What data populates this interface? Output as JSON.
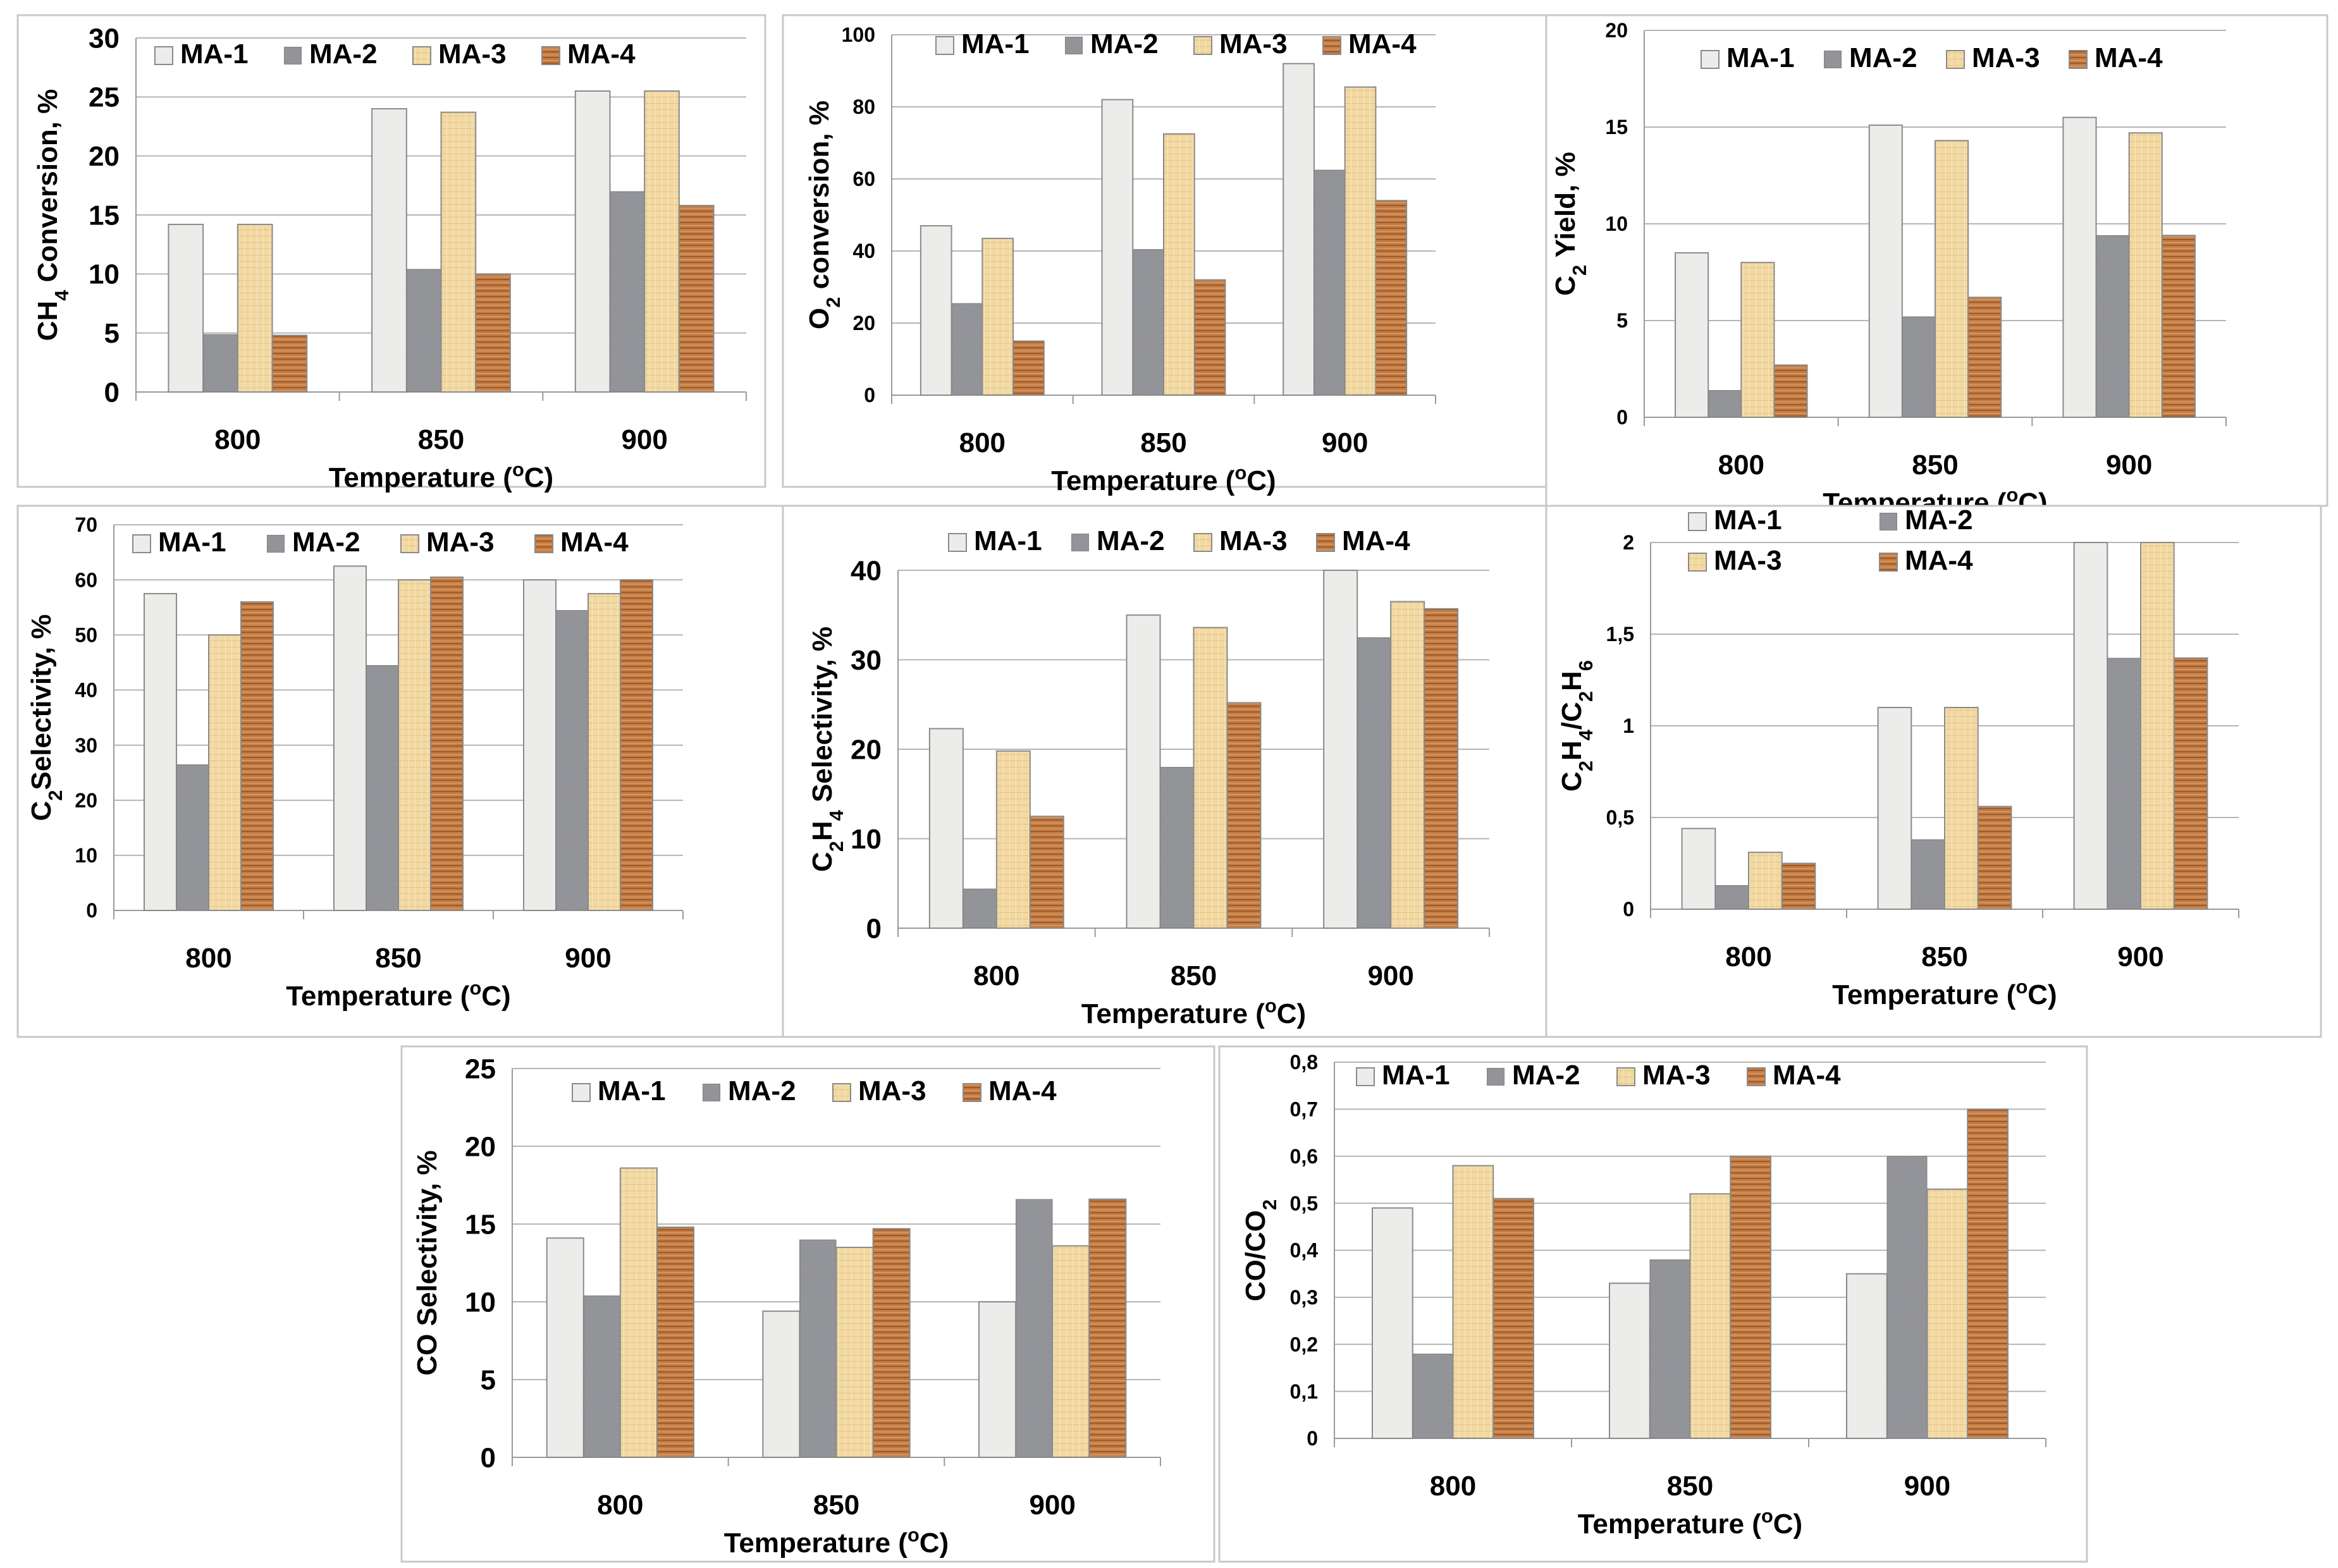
{
  "series_colors": {
    "MA-1": "#ececea",
    "MA-2": "#9d9ea3",
    "MA-3": "#efd39a",
    "MA-4": "#c47d45"
  },
  "chart_data": [
    {
      "id": "ch4-conversion",
      "type": "bar",
      "categories": [
        "800",
        "850",
        "900"
      ],
      "series": [
        {
          "name": "MA-1",
          "values": [
            14.2,
            24.0,
            25.5
          ]
        },
        {
          "name": "MA-2",
          "values": [
            4.9,
            10.4,
            17.0
          ]
        },
        {
          "name": "MA-3",
          "values": [
            14.2,
            23.7,
            25.5
          ]
        },
        {
          "name": "MA-4",
          "values": [
            4.8,
            10.0,
            15.8
          ]
        }
      ],
      "ylim": [
        0,
        30
      ],
      "yticks": [
        "0",
        "5",
        "10",
        "15",
        "20",
        "25",
        "30"
      ],
      "ylabel": {
        "pre": "CH",
        "sub": "4",
        "post": " Conversion, %"
      },
      "xlabel": {
        "pre": "Temperature  (",
        "sup": "o",
        "post": "C)"
      },
      "legend": {
        "layout": "one-row"
      }
    },
    {
      "id": "o2-conversion",
      "type": "bar",
      "categories": [
        "800",
        "850",
        "900"
      ],
      "series": [
        {
          "name": "MA-1",
          "values": [
            47,
            82,
            92
          ]
        },
        {
          "name": "MA-2",
          "values": [
            25.5,
            40.5,
            62.5
          ]
        },
        {
          "name": "MA-3",
          "values": [
            43.5,
            72.5,
            85.5
          ]
        },
        {
          "name": "MA-4",
          "values": [
            15,
            32,
            54
          ]
        }
      ],
      "ylim": [
        0,
        100
      ],
      "yticks": [
        "0",
        "20",
        "40",
        "60",
        "80",
        "100"
      ],
      "ylabel": {
        "pre": "O",
        "sub": "2",
        "post": " conversion, %"
      },
      "xlabel": {
        "pre": "Temperature  (",
        "sup": "o",
        "post": "C)"
      },
      "legend": {
        "layout": "one-row"
      }
    },
    {
      "id": "c2-yield",
      "type": "bar",
      "categories": [
        "800",
        "850",
        "900"
      ],
      "series": [
        {
          "name": "MA-1",
          "values": [
            8.5,
            15.1,
            15.5
          ]
        },
        {
          "name": "MA-2",
          "values": [
            1.4,
            5.2,
            9.4
          ]
        },
        {
          "name": "MA-3",
          "values": [
            8.0,
            14.3,
            14.7
          ]
        },
        {
          "name": "MA-4",
          "values": [
            2.7,
            6.2,
            9.4
          ]
        }
      ],
      "ylim": [
        0,
        20
      ],
      "yticks": [
        "0",
        "5",
        "10",
        "15",
        "20"
      ],
      "ylabel": {
        "pre": "C",
        "sub": "2",
        "post": " Yield, %"
      },
      "xlabel": {
        "pre": "Temperature  (",
        "sup": "o",
        "post": "C)"
      },
      "legend": {
        "layout": "one-row"
      }
    },
    {
      "id": "c2-selectivity",
      "type": "bar",
      "categories": [
        "800",
        "850",
        "900"
      ],
      "series": [
        {
          "name": "MA-1",
          "values": [
            57.5,
            62.5,
            60.0
          ]
        },
        {
          "name": "MA-2",
          "values": [
            26.5,
            44.5,
            54.5
          ]
        },
        {
          "name": "MA-3",
          "values": [
            50.0,
            60.0,
            57.5
          ]
        },
        {
          "name": "MA-4",
          "values": [
            56.0,
            60.5,
            60.0
          ]
        }
      ],
      "ylim": [
        0,
        70
      ],
      "yticks": [
        "0",
        "10",
        "20",
        "30",
        "40",
        "50",
        "60",
        "70"
      ],
      "ylabel": {
        "pre": "C",
        "sub": "2",
        "post": "Selectivity, %"
      },
      "xlabel": {
        "pre": "Temperature  (",
        "sup": "o",
        "post": "C)"
      },
      "legend": {
        "layout": "one-row"
      }
    },
    {
      "id": "c2h4-selectivity",
      "type": "bar",
      "categories": [
        "800",
        "850",
        "900"
      ],
      "series": [
        {
          "name": "MA-1",
          "values": [
            22.3,
            35.0,
            40.0
          ]
        },
        {
          "name": "MA-2",
          "values": [
            4.4,
            18.0,
            32.5
          ]
        },
        {
          "name": "MA-3",
          "values": [
            19.8,
            33.6,
            36.5
          ]
        },
        {
          "name": "MA-4",
          "values": [
            12.5,
            25.2,
            35.7
          ]
        }
      ],
      "ylim": [
        0,
        40
      ],
      "yticks": [
        "0",
        "10",
        "20",
        "30",
        "40"
      ],
      "ylabel": {
        "pre": "C",
        "sub": "2",
        "mid": "H",
        "sub2": "4",
        "post": " Selectivity, %"
      },
      "xlabel": {
        "pre": "Temperature  (",
        "sup": "o",
        "post": "C)"
      },
      "legend": {
        "layout": "one-row"
      }
    },
    {
      "id": "c2h4-c2h6-ratio",
      "type": "bar",
      "categories": [
        "800",
        "850",
        "900"
      ],
      "series": [
        {
          "name": "MA-1",
          "values": [
            0.44,
            1.1,
            2.0
          ]
        },
        {
          "name": "MA-2",
          "values": [
            0.13,
            0.38,
            1.37
          ]
        },
        {
          "name": "MA-3",
          "values": [
            0.31,
            1.1,
            2.0
          ]
        },
        {
          "name": "MA-4",
          "values": [
            0.25,
            0.56,
            1.37
          ]
        }
      ],
      "ylim": [
        0,
        2
      ],
      "yticks": [
        "0",
        "0,5",
        "1",
        "1,5",
        "2"
      ],
      "ylabel": {
        "pre": "C",
        "sub": "2",
        "mid": "H",
        "sub2": "4",
        "mid2": "/C",
        "sub3": "2",
        "mid3": "H",
        "sub4": "6",
        "post": ""
      },
      "xlabel": {
        "pre": "Temperature  (",
        "sup": "o",
        "post": "C)"
      },
      "legend": {
        "layout": "two-rows"
      }
    },
    {
      "id": "co-selectivity",
      "type": "bar",
      "categories": [
        "800",
        "850",
        "900"
      ],
      "series": [
        {
          "name": "MA-1",
          "values": [
            14.1,
            9.4,
            10.0
          ]
        },
        {
          "name": "MA-2",
          "values": [
            10.4,
            14.0,
            16.6
          ]
        },
        {
          "name": "MA-3",
          "values": [
            18.6,
            13.5,
            13.6
          ]
        },
        {
          "name": "MA-4",
          "values": [
            14.8,
            14.7,
            16.6
          ]
        }
      ],
      "ylim": [
        0,
        25
      ],
      "yticks": [
        "0",
        "5",
        "10",
        "15",
        "20",
        "25"
      ],
      "ylabel": {
        "pre": "CO Selectivity, %",
        "post": ""
      },
      "xlabel": {
        "pre": "Temperature  (",
        "sup": "o",
        "post": "C)"
      },
      "legend": {
        "layout": "one-row"
      }
    },
    {
      "id": "co-co2-ratio",
      "type": "bar",
      "categories": [
        "800",
        "850",
        "900"
      ],
      "series": [
        {
          "name": "MA-1",
          "values": [
            0.49,
            0.33,
            0.35
          ]
        },
        {
          "name": "MA-2",
          "values": [
            0.18,
            0.38,
            0.6
          ]
        },
        {
          "name": "MA-3",
          "values": [
            0.58,
            0.52,
            0.53
          ]
        },
        {
          "name": "MA-4",
          "values": [
            0.51,
            0.6,
            0.7
          ]
        }
      ],
      "ylim": [
        0,
        0.8
      ],
      "yticks": [
        "0",
        "0,1",
        "0,2",
        "0,3",
        "0,4",
        "0,5",
        "0,6",
        "0,7",
        "0,8"
      ],
      "ylabel": {
        "pre": "CO/CO",
        "sub": "2",
        "post": ""
      },
      "xlabel": {
        "pre": "Temperature  (",
        "sup": "o",
        "post": "C)"
      },
      "legend": {
        "layout": "one-row"
      }
    }
  ]
}
